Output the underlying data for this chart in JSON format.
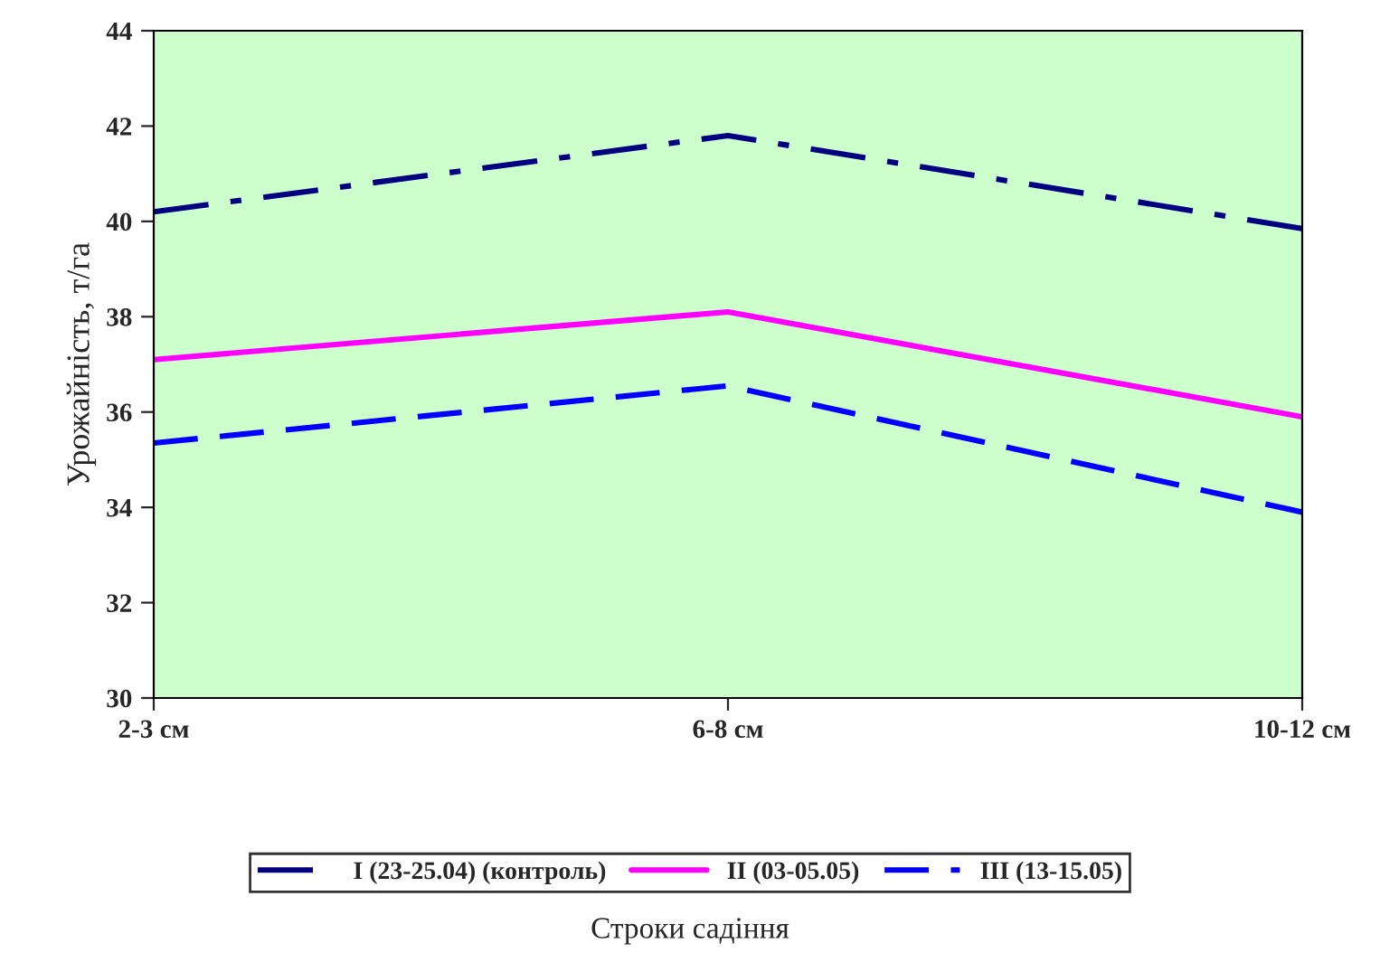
{
  "chart_data": {
    "type": "line",
    "annotations": [
      "Строки садіння"
    ],
    "ylabel": "Урожайність, т/га",
    "categories": [
      "2-3 см",
      "6-8 см",
      "10-12 см"
    ],
    "series": [
      {
        "name": "I (23-25.04) (контроль)",
        "color": "#000080",
        "line_style": "dashdot",
        "values": [
          40.2,
          41.8,
          39.85
        ]
      },
      {
        "name": "II (03-05.05)",
        "color": "#ff00ff",
        "line_style": "solid",
        "values": [
          37.1,
          38.1,
          35.9
        ]
      },
      {
        "name": "III (13-15.05)",
        "color": "#0000ff",
        "line_style": "dashed",
        "values": [
          35.35,
          36.55,
          33.9
        ]
      }
    ],
    "ylim": [
      30,
      44
    ],
    "yticks": [
      30,
      32,
      34,
      36,
      38,
      40,
      42,
      44
    ],
    "grid": false,
    "legend": "bottom"
  }
}
